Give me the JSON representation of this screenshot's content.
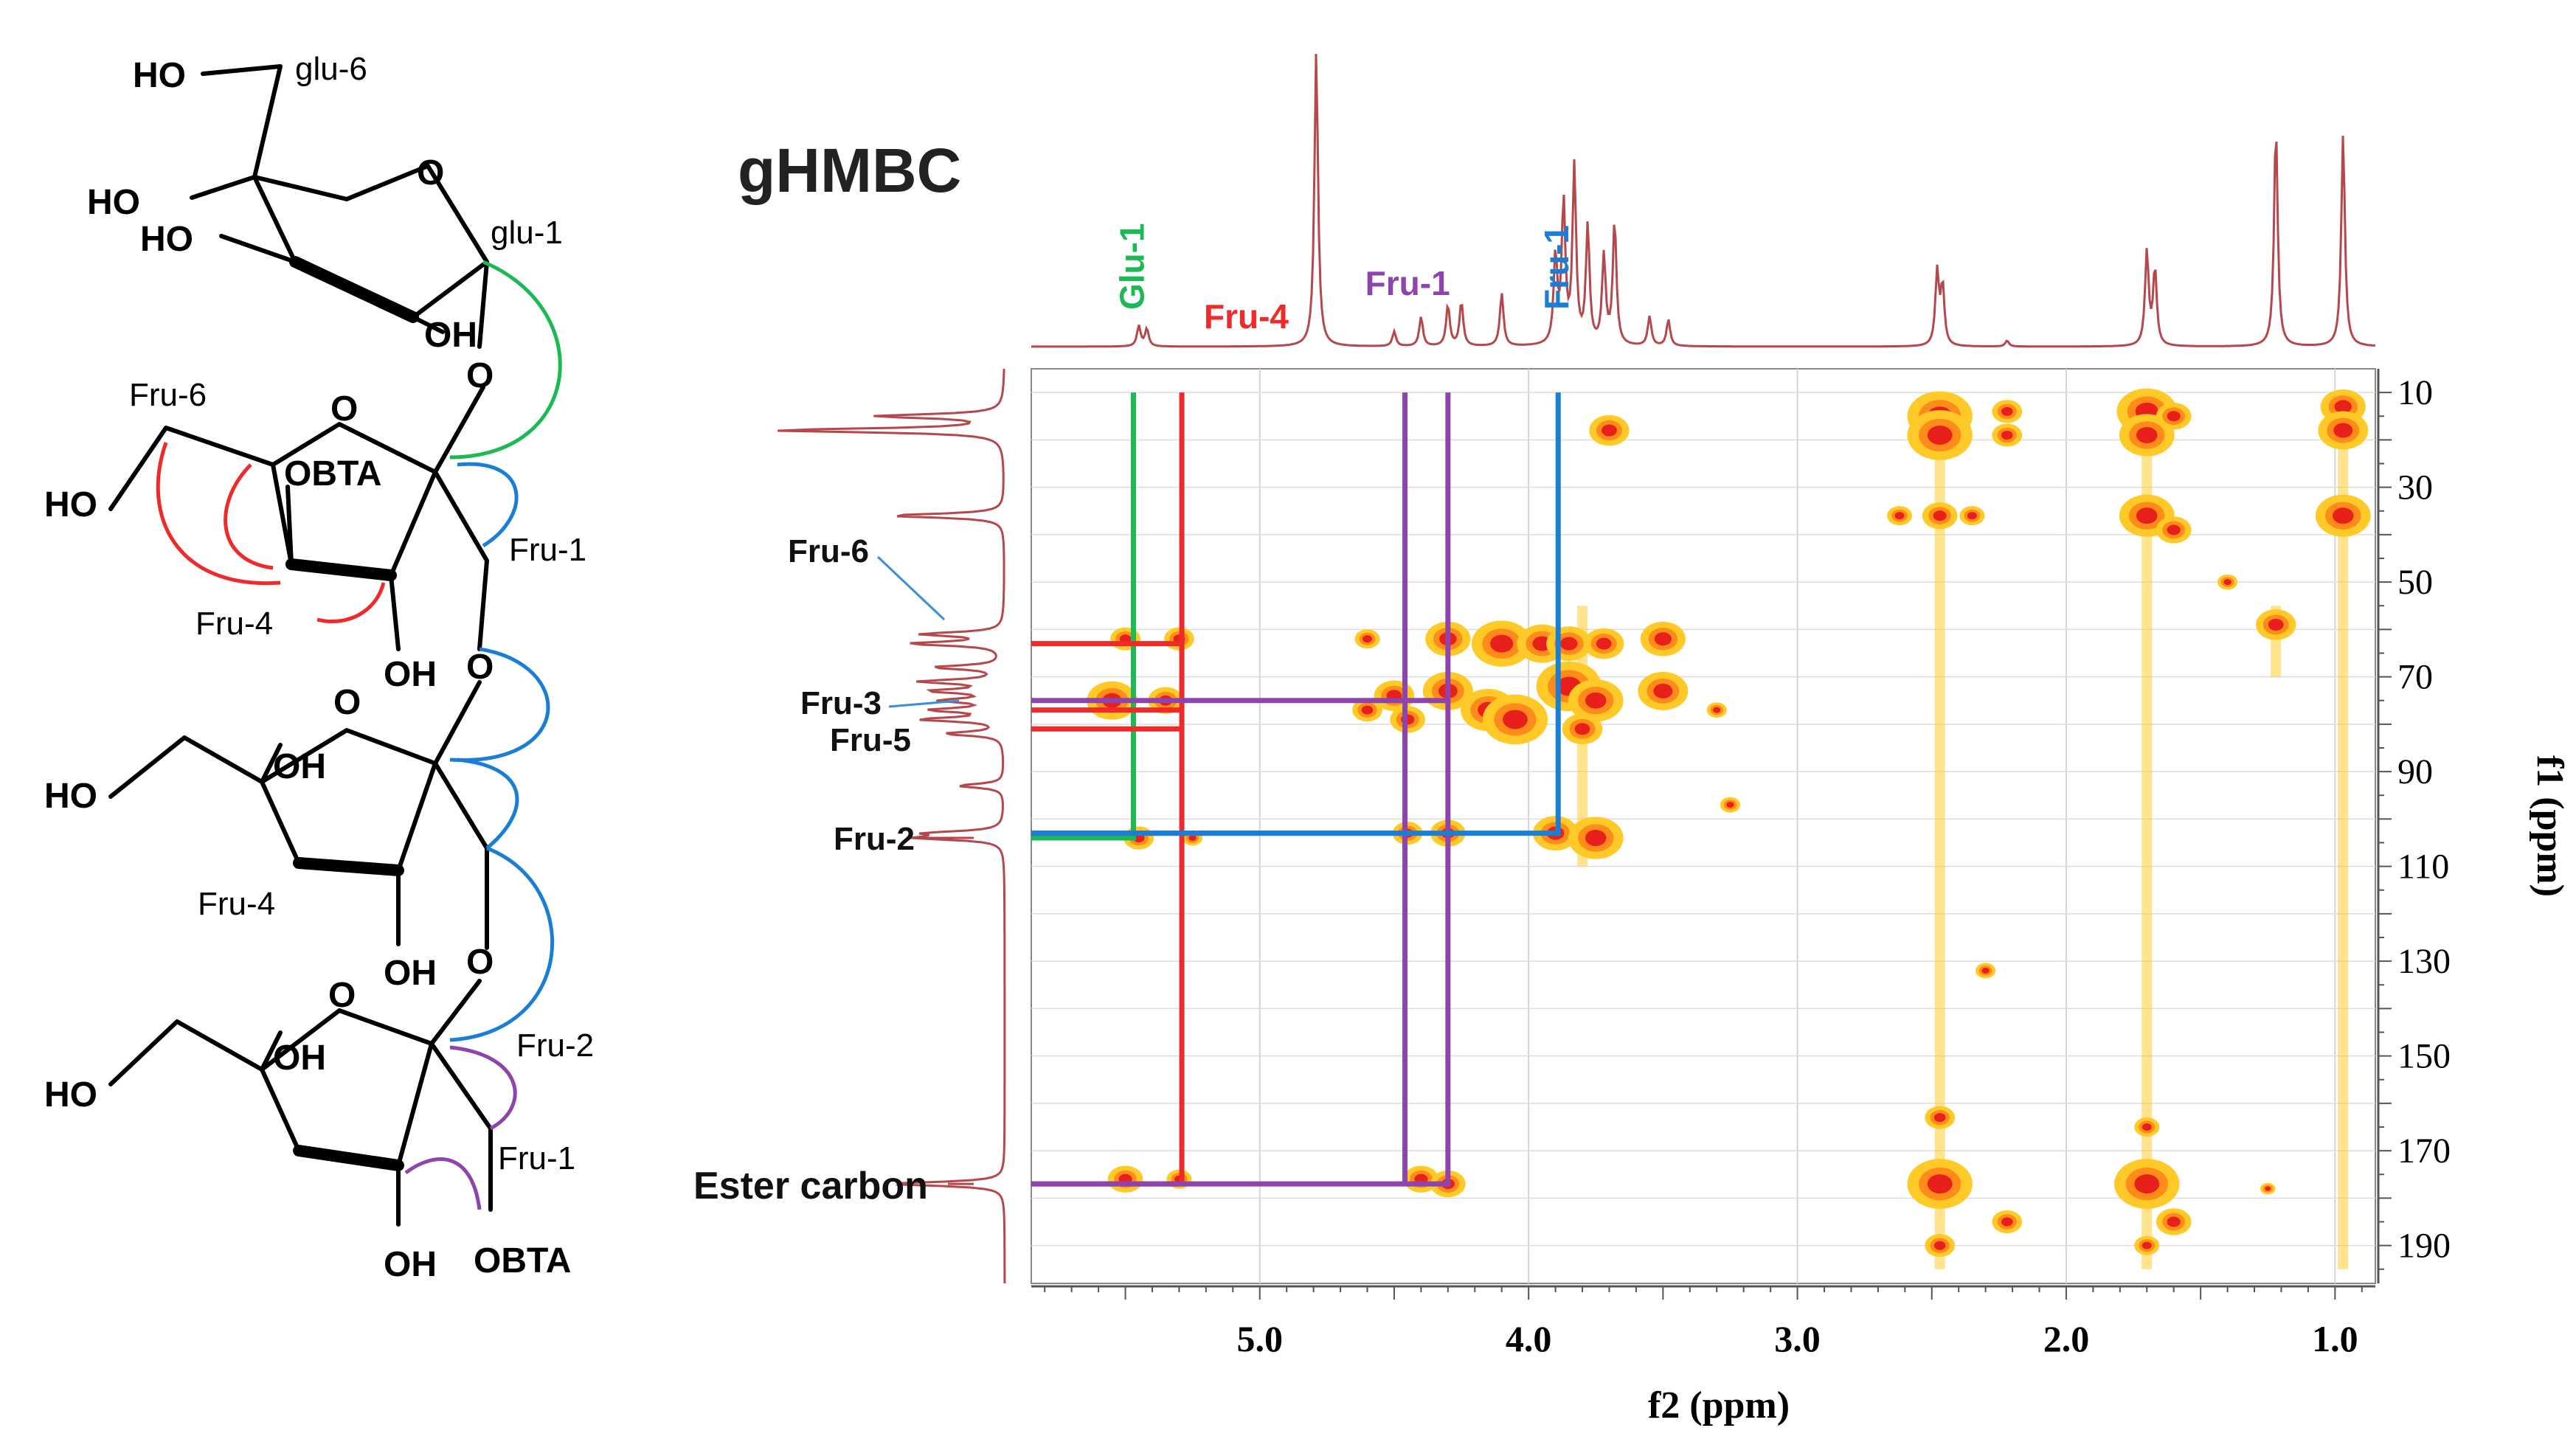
{
  "structure": {
    "labels": {
      "ho_top": "HO",
      "glu6": "glu-6",
      "ring_o_glu": "O",
      "ho_glu4": "HO",
      "ho_glu3": "HO",
      "glu1": "glu-1",
      "oh_glu2": "OH",
      "o_link1": "O",
      "fru6_a": "Fru-6",
      "ring_o_a": "O",
      "obta_a": "OBTA",
      "ho_a": "HO",
      "fru1_a": "Fru-1",
      "fru4_a": "Fru-4",
      "oh_a": "OH",
      "o_link2": "O",
      "ring_o_b": "O",
      "ho_b": "HO",
      "oh_b3": "OH",
      "fru4_b": "Fru-4",
      "oh_b": "OH",
      "o_link3": "O",
      "ring_o_c": "O",
      "ho_c": "HO",
      "oh_c3": "OH",
      "fru2_c": "Fru-2",
      "fru1_c": "Fru-1",
      "oh_c": "OH",
      "obta_c": "OBTA"
    },
    "colors": {
      "glu_link": "#1db954",
      "fru1_link": "#1a7fd4",
      "fru4": "#ee2a2a",
      "fru2": "#8e44ad"
    }
  },
  "chart_data": {
    "type": "heatmap",
    "title": "gHMBC",
    "xlabel": "f2 (ppm)",
    "ylabel": "f1 (ppm)",
    "xlim": [
      5.85,
      0.85
    ],
    "ylim": [
      5,
      198
    ],
    "x_ticks": [
      5.0,
      4.0,
      3.0,
      2.0,
      1.0
    ],
    "x_tick_labels": [
      "5.0",
      "4.0",
      "3.0",
      "2.0",
      "1.0"
    ],
    "y_ticks": [
      10,
      30,
      50,
      70,
      90,
      110,
      130,
      150,
      170,
      190
    ],
    "y_tick_labels": [
      "10",
      "30",
      "50",
      "70",
      "90",
      "110",
      "130",
      "150",
      "170",
      "190"
    ],
    "grid": true,
    "proton_spectrum_peaks": [
      {
        "x": 4.79,
        "h": 1.0
      },
      {
        "x": 1.22,
        "h": 0.75
      },
      {
        "x": 0.97,
        "h": 0.72
      },
      {
        "x": 3.83,
        "h": 0.6
      },
      {
        "x": 3.87,
        "h": 0.48
      },
      {
        "x": 3.78,
        "h": 0.4
      },
      {
        "x": 3.68,
        "h": 0.42
      },
      {
        "x": 3.72,
        "h": 0.3
      },
      {
        "x": 3.9,
        "h": 0.3
      },
      {
        "x": 1.7,
        "h": 0.32
      },
      {
        "x": 1.67,
        "h": 0.26
      },
      {
        "x": 2.48,
        "h": 0.25
      },
      {
        "x": 2.46,
        "h": 0.2
      },
      {
        "x": 4.1,
        "h": 0.18
      },
      {
        "x": 4.3,
        "h": 0.14
      },
      {
        "x": 4.25,
        "h": 0.15
      },
      {
        "x": 4.4,
        "h": 0.1
      },
      {
        "x": 3.55,
        "h": 0.1
      },
      {
        "x": 3.48,
        "h": 0.09
      },
      {
        "x": 5.45,
        "h": 0.07
      },
      {
        "x": 5.42,
        "h": 0.06
      },
      {
        "x": 4.5,
        "h": 0.05
      },
      {
        "x": 2.22,
        "h": 0.02
      }
    ],
    "carbon_spectrum_peaks": [
      {
        "y": 15,
        "h": 0.55
      },
      {
        "y": 18,
        "h": 1.0
      },
      {
        "y": 36,
        "h": 0.5
      },
      {
        "y": 61,
        "h": 0.35
      },
      {
        "y": 63,
        "h": 0.4
      },
      {
        "y": 68,
        "h": 0.3
      },
      {
        "y": 71,
        "h": 0.35
      },
      {
        "y": 73,
        "h": 0.3
      },
      {
        "y": 75,
        "h": 0.25
      },
      {
        "y": 77,
        "h": 0.3
      },
      {
        "y": 79,
        "h": 0.35
      },
      {
        "y": 82,
        "h": 0.25
      },
      {
        "y": 93,
        "h": 0.2
      },
      {
        "y": 103,
        "h": 0.3
      },
      {
        "y": 104,
        "h": 0.35
      },
      {
        "y": 177,
        "h": 0.5
      }
    ],
    "hmbc_cross_peaks": [
      {
        "x": 3.7,
        "y": 18,
        "s": 0.8
      },
      {
        "x": 2.47,
        "y": 15,
        "s": 1.3
      },
      {
        "x": 2.47,
        "y": 19,
        "s": 1.3
      },
      {
        "x": 2.22,
        "y": 14,
        "s": 0.6
      },
      {
        "x": 2.22,
        "y": 19,
        "s": 0.6
      },
      {
        "x": 1.7,
        "y": 14,
        "s": 1.2
      },
      {
        "x": 1.7,
        "y": 19,
        "s": 1.1
      },
      {
        "x": 1.6,
        "y": 15,
        "s": 0.7
      },
      {
        "x": 0.97,
        "y": 13,
        "s": 0.9
      },
      {
        "x": 0.97,
        "y": 18,
        "s": 1.0
      },
      {
        "x": 2.47,
        "y": 36,
        "s": 0.7
      },
      {
        "x": 2.62,
        "y": 36,
        "s": 0.5
      },
      {
        "x": 2.35,
        "y": 36,
        "s": 0.5
      },
      {
        "x": 1.7,
        "y": 36,
        "s": 1.1
      },
      {
        "x": 1.6,
        "y": 39,
        "s": 0.7
      },
      {
        "x": 0.97,
        "y": 36,
        "s": 1.1
      },
      {
        "x": 1.22,
        "y": 59,
        "s": 0.8
      },
      {
        "x": 5.5,
        "y": 62,
        "s": 0.6
      },
      {
        "x": 5.3,
        "y": 62,
        "s": 0.6
      },
      {
        "x": 4.3,
        "y": 62,
        "s": 0.9
      },
      {
        "x": 4.1,
        "y": 63,
        "s": 1.2
      },
      {
        "x": 3.95,
        "y": 63,
        "s": 1.0
      },
      {
        "x": 3.85,
        "y": 63,
        "s": 0.9
      },
      {
        "x": 3.72,
        "y": 63,
        "s": 0.8
      },
      {
        "x": 3.5,
        "y": 62,
        "s": 0.9
      },
      {
        "x": 4.6,
        "y": 62,
        "s": 0.5
      },
      {
        "x": 5.55,
        "y": 75,
        "s": 1.0
      },
      {
        "x": 5.35,
        "y": 75,
        "s": 0.7
      },
      {
        "x": 4.5,
        "y": 74,
        "s": 0.8
      },
      {
        "x": 4.3,
        "y": 73,
        "s": 1.0
      },
      {
        "x": 4.15,
        "y": 77,
        "s": 1.1
      },
      {
        "x": 4.05,
        "y": 79,
        "s": 1.3
      },
      {
        "x": 3.85,
        "y": 72,
        "s": 1.3
      },
      {
        "x": 3.75,
        "y": 75,
        "s": 1.1
      },
      {
        "x": 3.5,
        "y": 73,
        "s": 1.0
      },
      {
        "x": 3.8,
        "y": 81,
        "s": 0.8
      },
      {
        "x": 4.45,
        "y": 79,
        "s": 0.7
      },
      {
        "x": 4.6,
        "y": 77,
        "s": 0.6
      },
      {
        "x": 3.3,
        "y": 77,
        "s": 0.4
      },
      {
        "x": 3.25,
        "y": 97,
        "s": 0.4
      },
      {
        "x": 5.45,
        "y": 104,
        "s": 0.6
      },
      {
        "x": 4.45,
        "y": 103,
        "s": 0.6
      },
      {
        "x": 4.3,
        "y": 103,
        "s": 0.7
      },
      {
        "x": 3.9,
        "y": 103,
        "s": 0.9
      },
      {
        "x": 3.75,
        "y": 104,
        "s": 1.1
      },
      {
        "x": 5.25,
        "y": 104,
        "s": 0.4
      },
      {
        "x": 5.5,
        "y": 176,
        "s": 0.7
      },
      {
        "x": 5.3,
        "y": 176,
        "s": 0.5
      },
      {
        "x": 4.4,
        "y": 176,
        "s": 0.7
      },
      {
        "x": 4.3,
        "y": 177,
        "s": 0.7
      },
      {
        "x": 2.47,
        "y": 177,
        "s": 1.3
      },
      {
        "x": 2.22,
        "y": 185,
        "s": 0.6
      },
      {
        "x": 1.7,
        "y": 177,
        "s": 1.3
      },
      {
        "x": 1.6,
        "y": 185,
        "s": 0.7
      },
      {
        "x": 2.3,
        "y": 132,
        "s": 0.4
      },
      {
        "x": 2.47,
        "y": 163,
        "s": 0.6
      },
      {
        "x": 2.47,
        "y": 190,
        "s": 0.6
      },
      {
        "x": 1.7,
        "y": 165,
        "s": 0.5
      },
      {
        "x": 1.7,
        "y": 190,
        "s": 0.5
      },
      {
        "x": 1.4,
        "y": 50,
        "s": 0.4
      },
      {
        "x": 1.25,
        "y": 178,
        "s": 0.3
      }
    ],
    "vertical_streaks": [
      {
        "x": 2.47,
        "y1": 10,
        "y2": 195
      },
      {
        "x": 1.7,
        "y1": 10,
        "y2": 195
      },
      {
        "x": 0.97,
        "y1": 10,
        "y2": 195
      },
      {
        "x": 1.22,
        "y1": 55,
        "y2": 70
      },
      {
        "x": 3.8,
        "y1": 55,
        "y2": 110
      }
    ],
    "correlation_paths": [
      {
        "color": "#1db954",
        "points": [
          [
            5.47,
            10
          ],
          [
            5.47,
            104
          ],
          [
            5.85,
            104
          ]
        ]
      },
      {
        "color": "#ee2a2a",
        "points": [
          [
            5.29,
            10
          ],
          [
            5.29,
            177
          ],
          [
            5.85,
            177
          ]
        ]
      },
      {
        "color": "#ee2a2a",
        "points": [
          [
            5.29,
            63
          ],
          [
            5.85,
            63
          ]
        ]
      },
      {
        "color": "#ee2a2a",
        "points": [
          [
            5.29,
            77
          ],
          [
            5.85,
            77
          ]
        ]
      },
      {
        "color": "#ee2a2a",
        "points": [
          [
            5.29,
            81
          ],
          [
            5.85,
            81
          ]
        ]
      },
      {
        "color": "#8e44ad",
        "points": [
          [
            4.46,
            10
          ],
          [
            4.46,
            177
          ]
        ]
      },
      {
        "color": "#8e44ad",
        "points": [
          [
            4.3,
            10
          ],
          [
            4.3,
            177
          ],
          [
            5.85,
            177
          ]
        ]
      },
      {
        "color": "#8e44ad",
        "points": [
          [
            4.3,
            75
          ],
          [
            5.85,
            75
          ]
        ]
      },
      {
        "color": "#8e44ad",
        "points": [
          [
            4.46,
            103
          ],
          [
            5.85,
            103
          ]
        ]
      },
      {
        "color": "#1a7fd4",
        "points": [
          [
            3.89,
            10
          ],
          [
            3.89,
            103
          ],
          [
            5.85,
            103
          ]
        ]
      }
    ],
    "column_labels": [
      {
        "text": "Glu-1",
        "x": 5.47,
        "color": "#1db954"
      },
      {
        "text": "Fru-4",
        "x": 5.05,
        "color": "#ee2a2a"
      },
      {
        "text": "Fru-1",
        "x": 4.45,
        "color": "#8e44ad"
      },
      {
        "text": "Fru-1",
        "x": 3.89,
        "color": "#1a7fd4"
      }
    ],
    "row_labels": [
      {
        "text": "Fru-6",
        "y": 61
      },
      {
        "text": "Fru-3",
        "y": 76
      },
      {
        "text": "Fru-5",
        "y": 83
      },
      {
        "text": "Fru-2",
        "y": 104
      },
      {
        "text": "Ester carbon",
        "y": 177
      }
    ]
  }
}
